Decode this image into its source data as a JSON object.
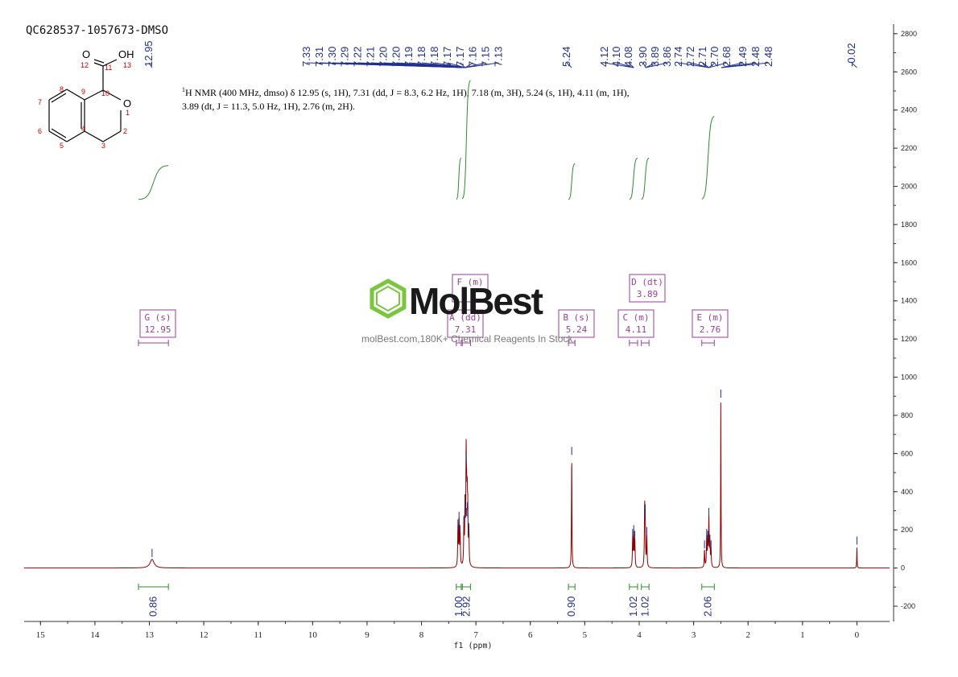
{
  "sample_id": "QC628537-1057673-DMSO",
  "description": {
    "nucleus_sup": "1",
    "text": "H NMR (400 MHz, dmso) δ 12.95 (s, 1H), 7.31 (dd, J = 8.3, 6.2 Hz, 1H), 7.18 (m, 3H), 5.24 (s, 1H), 4.11 (m, 1H), 3.89 (dt, J = 11.3, 5.0 Hz, 1H), 2.76 (m, 2H)."
  },
  "watermark": {
    "logo": "MolBest",
    "tagline": "molBest.com,180K+ Chemical Reagents In Stock."
  },
  "structure_labels": {
    "atoms": [
      "O",
      "OH",
      "O"
    ],
    "numbers": [
      "12",
      "11",
      "13",
      "10",
      "1",
      "9",
      "8",
      "7",
      "6",
      "5",
      "4",
      "3",
      "2"
    ]
  },
  "colors": {
    "spectrum": "#8b0000",
    "peak_labels": "#1f2f8f",
    "integral": "#2e8b2e",
    "multiplet_box": "#9b3e9b",
    "axis": "#333333"
  },
  "chart_data": {
    "type": "line",
    "title": "",
    "xlabel": "f1 (ppm)",
    "ylabel": "",
    "x_range": [
      15.3,
      -0.6
    ],
    "y_range": [
      -280,
      2850
    ],
    "x_ticks": [
      15,
      14,
      13,
      12,
      11,
      10,
      9,
      8,
      7,
      6,
      5,
      4,
      3,
      2,
      1,
      0
    ],
    "y_ticks": [
      -200,
      0,
      200,
      400,
      600,
      800,
      1000,
      1200,
      1400,
      1600,
      1800,
      2000,
      2200,
      2400,
      2600,
      2800
    ],
    "peaks": [
      {
        "ppm": 12.95,
        "height": 45,
        "width": 0.09
      },
      {
        "ppm": 7.33,
        "height": 200,
        "width": 0.012
      },
      {
        "ppm": 7.31,
        "height": 240,
        "width": 0.012
      },
      {
        "ppm": 7.29,
        "height": 170,
        "width": 0.012
      },
      {
        "ppm": 7.22,
        "height": 220,
        "width": 0.012
      },
      {
        "ppm": 7.2,
        "height": 300,
        "width": 0.012
      },
      {
        "ppm": 7.18,
        "height": 540,
        "width": 0.012
      },
      {
        "ppm": 7.17,
        "height": 260,
        "width": 0.012
      },
      {
        "ppm": 7.16,
        "height": 290,
        "width": 0.012
      },
      {
        "ppm": 7.15,
        "height": 250,
        "width": 0.012
      },
      {
        "ppm": 7.13,
        "height": 180,
        "width": 0.012
      },
      {
        "ppm": 5.24,
        "height": 580,
        "width": 0.01
      },
      {
        "ppm": 4.12,
        "height": 150,
        "width": 0.012
      },
      {
        "ppm": 4.1,
        "height": 170,
        "width": 0.012
      },
      {
        "ppm": 4.08,
        "height": 140,
        "width": 0.012
      },
      {
        "ppm": 3.9,
        "height": 280,
        "width": 0.012
      },
      {
        "ppm": 3.89,
        "height": 250,
        "width": 0.012
      },
      {
        "ppm": 3.86,
        "height": 160,
        "width": 0.012
      },
      {
        "ppm": 2.8,
        "height": 90,
        "width": 0.012
      },
      {
        "ppm": 2.76,
        "height": 150,
        "width": 0.012
      },
      {
        "ppm": 2.74,
        "height": 140,
        "width": 0.012
      },
      {
        "ppm": 2.72,
        "height": 260,
        "width": 0.012
      },
      {
        "ppm": 2.7,
        "height": 120,
        "width": 0.012
      },
      {
        "ppm": 2.68,
        "height": 90,
        "width": 0.012
      },
      {
        "ppm": 2.5,
        "height": 880,
        "width": 0.008
      },
      {
        "ppm": 0.0,
        "height": 110,
        "width": 0.008
      }
    ],
    "peak_label_groups": [
      {
        "labels": [
          "7.33",
          "7.31",
          "7.30",
          "7.29",
          "7.22",
          "7.21",
          "7.20",
          "7.20",
          "7.19",
          "7.18",
          "7.18",
          "7.17",
          "7.17",
          "7.16",
          "7.15",
          "7.13"
        ],
        "target_ppm": 7.2
      },
      {
        "labels": [
          "12.95"
        ],
        "target_ppm": 12.95
      },
      {
        "labels": [
          "5.24"
        ],
        "target_ppm": 5.24
      },
      {
        "labels": [
          "4.12",
          "4.10",
          "4.08"
        ],
        "target_ppm": 4.1
      },
      {
        "labels": [
          "3.90",
          "3.89",
          "3.86"
        ],
        "target_ppm": 3.88
      },
      {
        "labels": [
          "2.74",
          "2.72",
          "2.71",
          "2.70",
          "2.68"
        ],
        "target_ppm": 2.72
      },
      {
        "labels": [
          "2.49",
          "2.48",
          "2.48"
        ],
        "target_ppm": 2.49
      },
      {
        "labels": [
          "-0.02"
        ],
        "target_ppm": 0.0
      }
    ],
    "multiplets": [
      {
        "label": "G (s)",
        "value": "12.95",
        "from": 13.2,
        "to": 12.65
      },
      {
        "label": "A (dd)",
        "value": "7.31",
        "from": 7.36,
        "to": 7.27
      },
      {
        "label": "F (m)",
        "value": "",
        "from": 7.25,
        "to": 7.1
      },
      {
        "label": "B (s)",
        "value": "5.24",
        "from": 5.3,
        "to": 5.18
      },
      {
        "label": "C (m)",
        "value": "4.11",
        "from": 4.18,
        "to": 4.03
      },
      {
        "label": "D (dt)",
        "value": "3.89",
        "from": 3.96,
        "to": 3.82
      },
      {
        "label": "E (m)",
        "value": "2.76",
        "from": 2.85,
        "to": 2.62
      }
    ],
    "integrals": [
      {
        "label": "0.86",
        "from": 13.2,
        "to": 12.65,
        "y_start": 1930,
        "y_end": 2110
      },
      {
        "label": "1.00",
        "from": 7.36,
        "to": 7.27,
        "y_start": 1930,
        "y_end": 2150
      },
      {
        "label": "2.92",
        "from": 7.25,
        "to": 7.1,
        "y_start": 1930,
        "y_end": 2560
      },
      {
        "label": "0.90",
        "from": 5.3,
        "to": 5.18,
        "y_start": 1930,
        "y_end": 2120
      },
      {
        "label": "1.02",
        "from": 4.18,
        "to": 4.03,
        "y_start": 1930,
        "y_end": 2150
      },
      {
        "label": "1.02",
        "from": 3.96,
        "to": 3.82,
        "y_start": 1930,
        "y_end": 2150
      },
      {
        "label": "2.06",
        "from": 2.85,
        "to": 2.62,
        "y_start": 1930,
        "y_end": 2370
      }
    ]
  }
}
